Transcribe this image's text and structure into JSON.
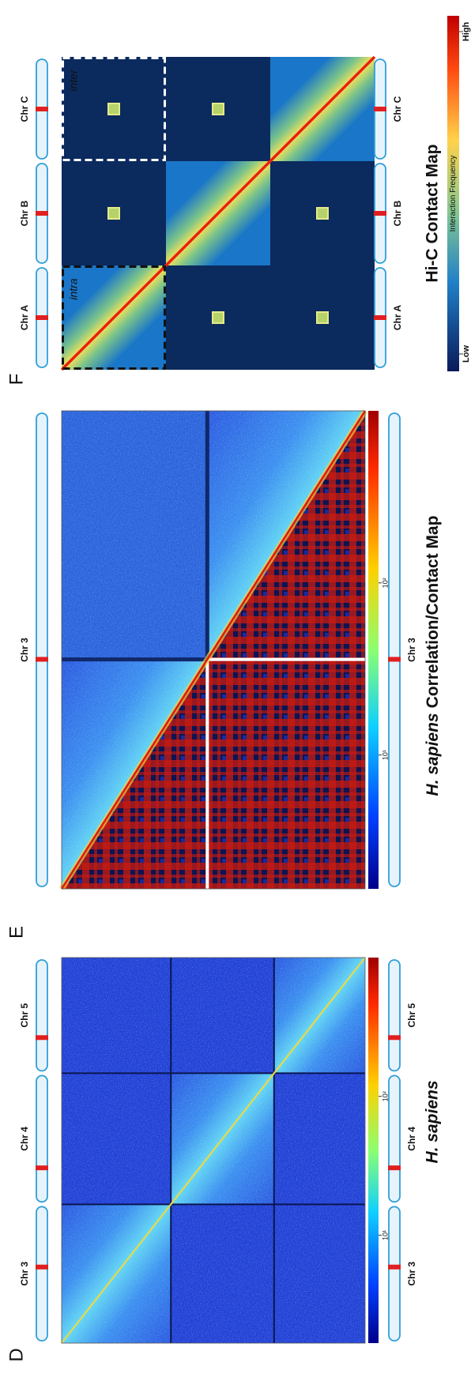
{
  "panels": [
    {
      "label": "D",
      "title": "H. sapiens",
      "colorbar_ticks": [
        "10²",
        "10¹"
      ],
      "chromosomes": [
        "Chr 3",
        "Chr 4",
        "Chr 5"
      ]
    },
    {
      "label": "E",
      "title_italic": "H. sapiens",
      "title": "Correlation/Contact Map",
      "colorbar_ticks": [
        "10²",
        "10¹"
      ],
      "chromosomes": [
        "Chr 3"
      ]
    },
    {
      "label": "F",
      "title": "Hi-C Contact Map",
      "colorbar_high": "High",
      "colorbar_low": "Low",
      "colorbar_label": "Interaction Frequency",
      "box_labels": [
        "intra",
        "inter"
      ],
      "chromosomes": [
        "Chr A",
        "Chr B",
        "Chr C"
      ]
    }
  ]
}
